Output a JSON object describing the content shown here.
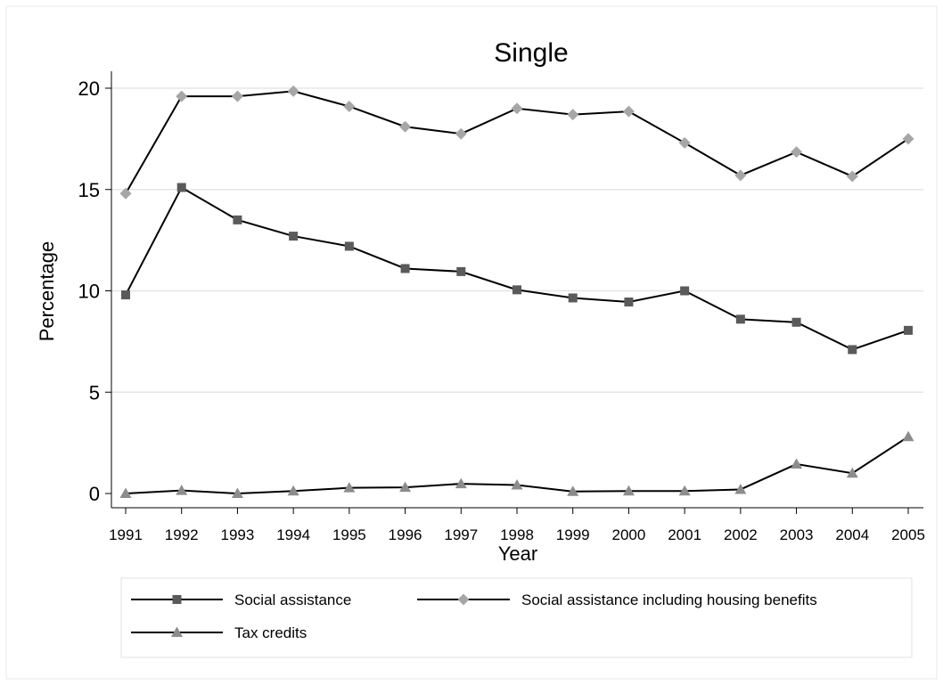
{
  "chart_data": {
    "type": "line",
    "title": "Single",
    "xlabel": "Year",
    "ylabel": "Percentage",
    "x": [
      1991,
      1992,
      1993,
      1994,
      1995,
      1996,
      1997,
      1998,
      1999,
      2000,
      2001,
      2002,
      2003,
      2004,
      2005
    ],
    "ylim": [
      0,
      20
    ],
    "yticks": [
      0,
      5,
      10,
      15,
      20
    ],
    "grid": true,
    "legend_position": "bottom",
    "series": [
      {
        "name": "Social assistance",
        "marker": "square",
        "marker_color": "#5a5a5a",
        "values": [
          9.8,
          15.1,
          13.5,
          12.7,
          12.2,
          11.1,
          10.95,
          10.05,
          9.65,
          9.45,
          10.0,
          8.6,
          8.45,
          7.1,
          8.05
        ]
      },
      {
        "name": "Social assistance including housing benefits",
        "marker": "diamond",
        "marker_color": "#a6a6a6",
        "values": [
          14.8,
          19.6,
          19.6,
          19.85,
          19.1,
          18.1,
          17.75,
          19.0,
          18.7,
          18.85,
          17.3,
          15.7,
          16.85,
          15.65,
          17.5
        ]
      },
      {
        "name": "Tax credits",
        "marker": "triangle",
        "marker_color": "#8c8c8c",
        "values": [
          0.0,
          0.15,
          0.0,
          0.12,
          0.28,
          0.3,
          0.48,
          0.42,
          0.1,
          0.12,
          0.12,
          0.2,
          1.45,
          1.0,
          2.8
        ]
      }
    ]
  }
}
